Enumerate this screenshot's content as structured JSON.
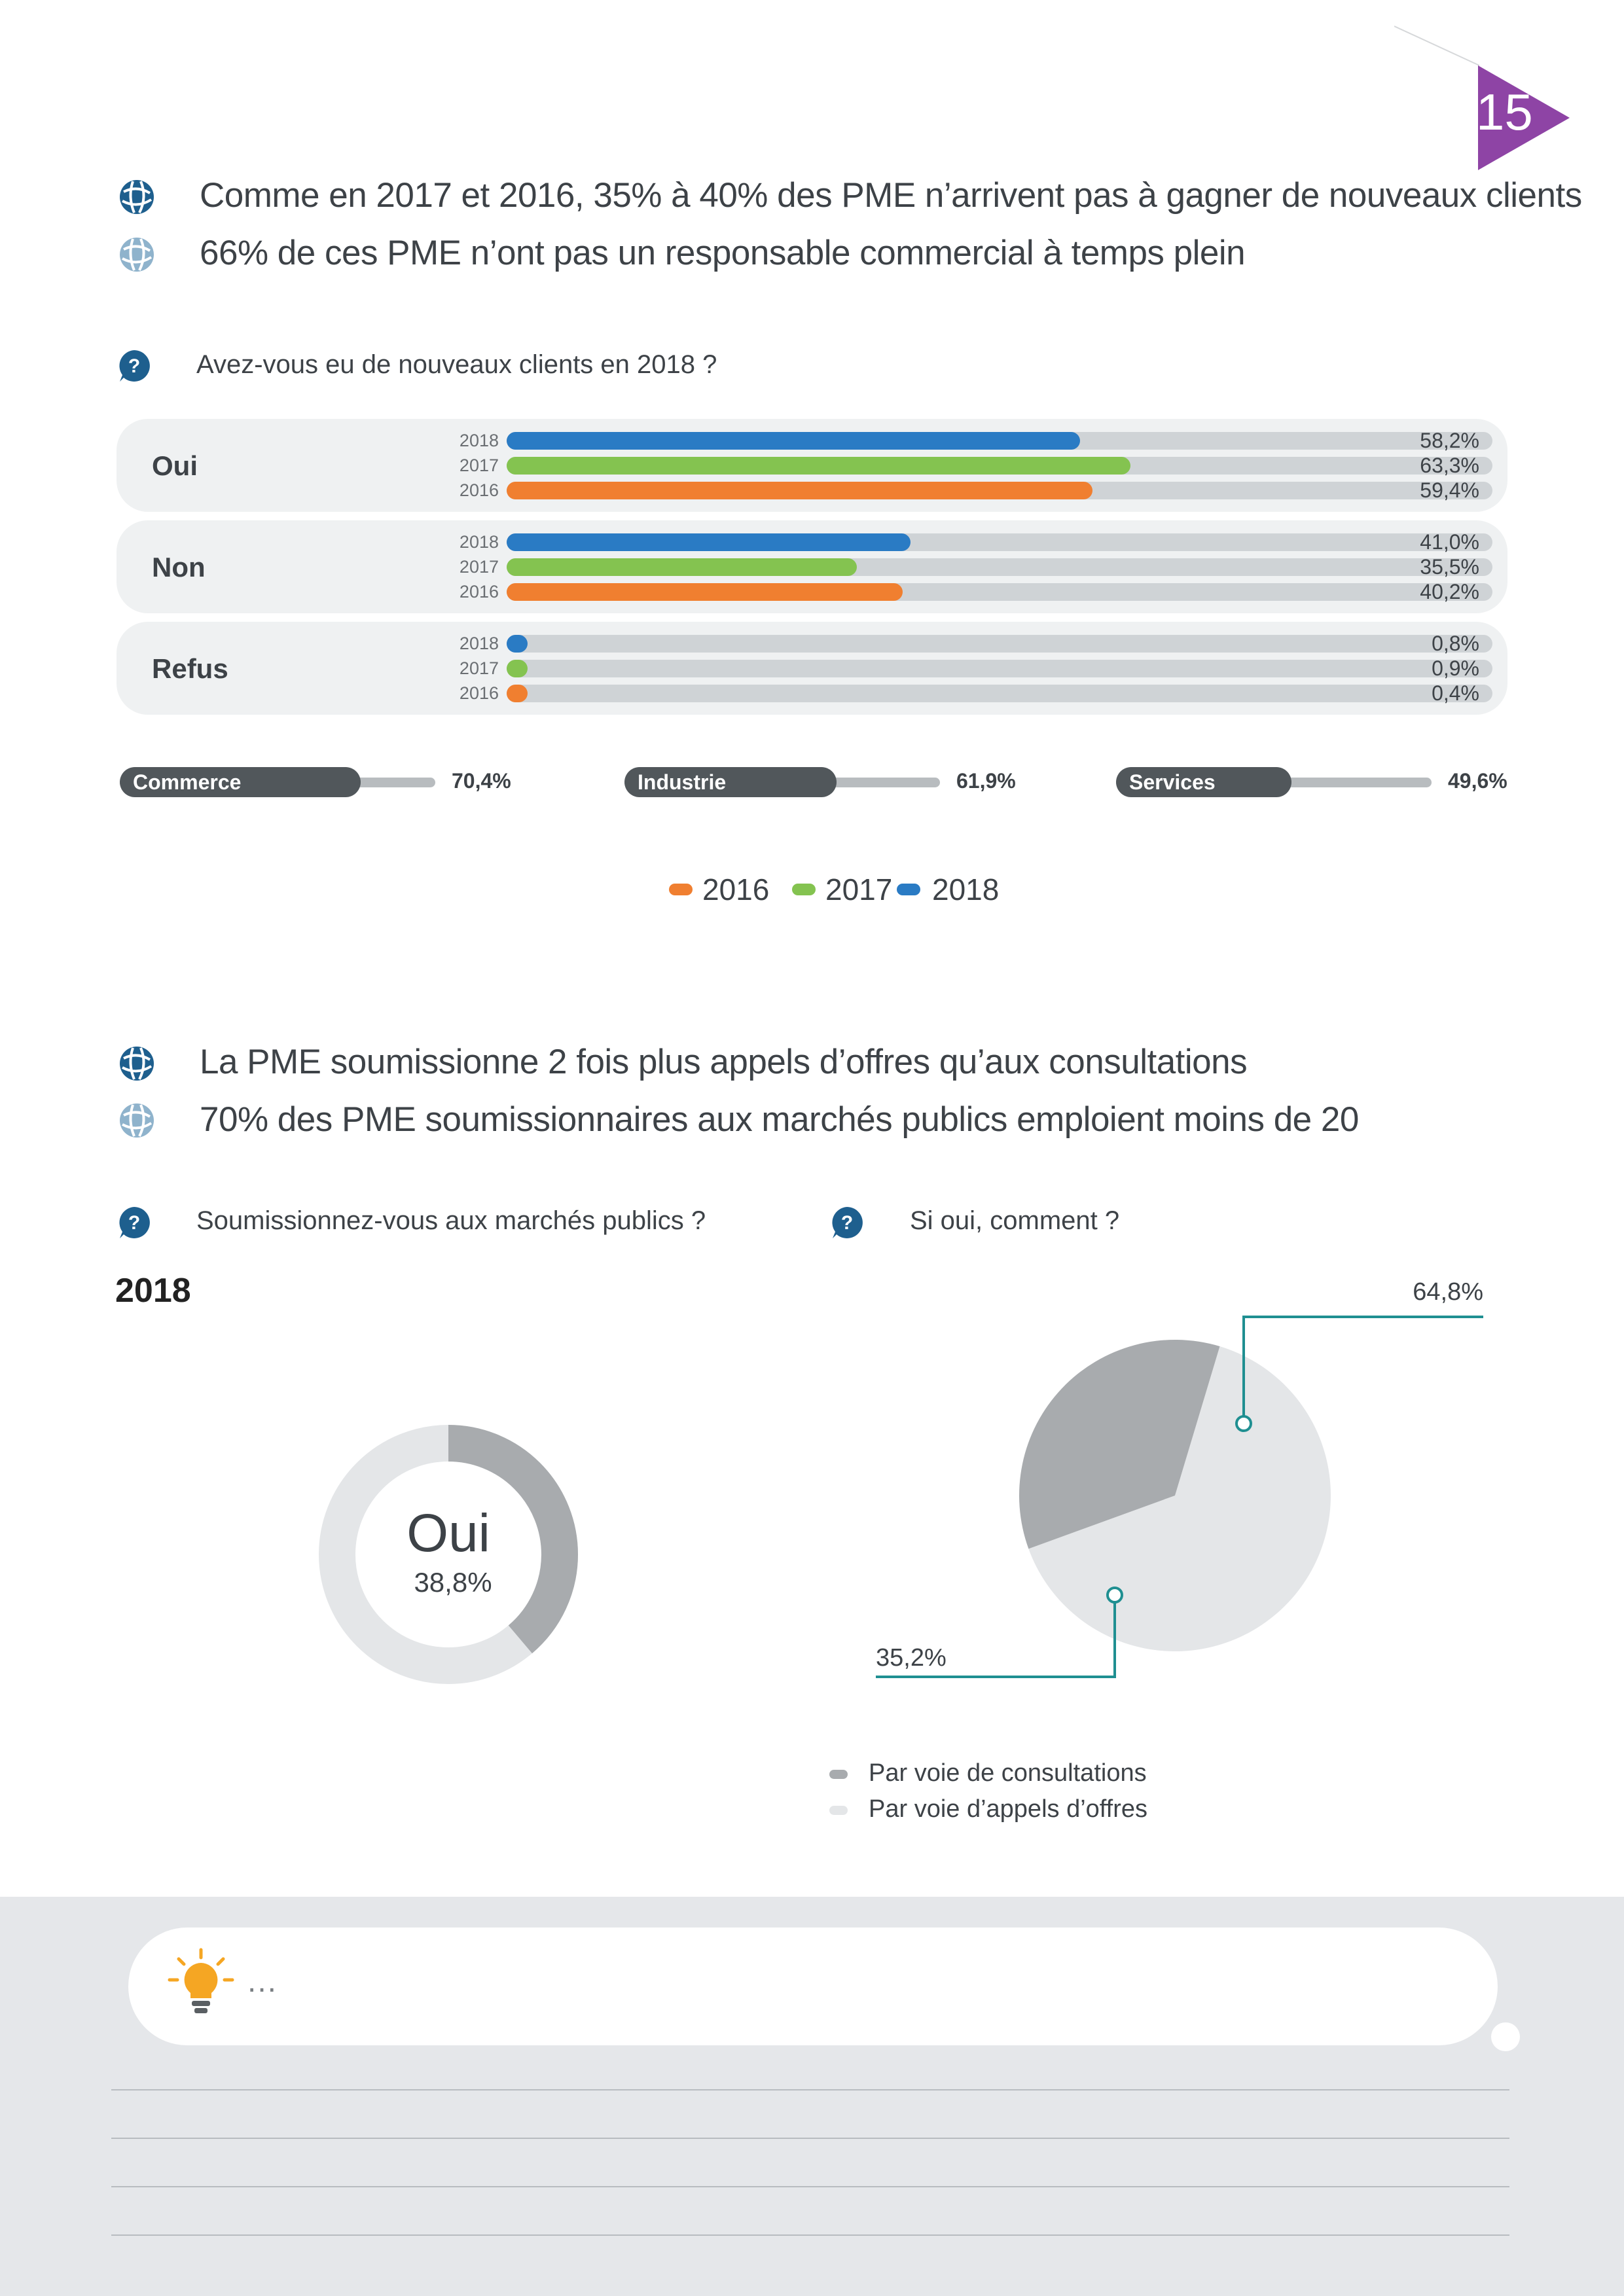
{
  "page": {
    "number": "15",
    "accent_color": "#8e44a5"
  },
  "section1": {
    "headline1": "Comme en 2017 et 2016, 35% à 40% des PME n’arrivent pas à gagner de nouveaux clients",
    "headline2": "66% de ces PME n’ont pas un responsable commercial à temps plein",
    "question": "Avez-vous eu de nouveaux clients en 2018 ?"
  },
  "colors": {
    "y2016": "#f07f30",
    "y2017": "#84c350",
    "y2018": "#2a7bc4",
    "track": "#cfd3d6",
    "pie_dark": "#a8abae",
    "pie_light": "#e4e6e8",
    "callout": "#1f8f91"
  },
  "chart_data": [
    {
      "type": "bar",
      "orientation": "horizontal",
      "title": "Avez-vous eu de nouveaux clients en 2018 ?",
      "categories": [
        "Oui",
        "Non",
        "Refus"
      ],
      "series": [
        {
          "name": "2018",
          "values": [
            58.2,
            41.0,
            0.8
          ],
          "labels": [
            "58,2%",
            "41,0%",
            "0,8%"
          ]
        },
        {
          "name": "2017",
          "values": [
            63.3,
            35.5,
            0.9
          ],
          "labels": [
            "63,3%",
            "35,5%",
            "0,9%"
          ]
        },
        {
          "name": "2016",
          "values": [
            59.4,
            40.2,
            0.4
          ],
          "labels": [
            "59,4%",
            "40,2%",
            "0,4%"
          ]
        }
      ],
      "xlim": [
        0,
        100
      ],
      "legend": {
        "position": "bottom-center",
        "entries": [
          "2016",
          "2017",
          "2018"
        ]
      }
    },
    {
      "type": "bar",
      "orientation": "horizontal",
      "categories": [
        "Commerce",
        "Industrie",
        "Services"
      ],
      "values": [
        70.4,
        61.9,
        49.6
      ],
      "labels": [
        "70,4%",
        "61,9%",
        "49,6%"
      ],
      "xlim": [
        0,
        100
      ]
    },
    {
      "type": "pie",
      "style": "donut",
      "title": "Soumissionnez-vous aux marchés publics ?",
      "subtitle": "2018",
      "center_label": "Oui",
      "slices": [
        {
          "label": "Oui",
          "value": 38.8,
          "display": "38,8%"
        },
        {
          "label": "",
          "value": 61.2
        }
      ]
    },
    {
      "type": "pie",
      "title": "Si oui, comment ?",
      "slices": [
        {
          "label": "Par voie de consultations",
          "value": 35.2,
          "display": "35,2%"
        },
        {
          "label": "Par voie d’appels d’offres",
          "value": 64.8,
          "display": "64,8%"
        }
      ],
      "legend": {
        "position": "bottom-left"
      }
    }
  ],
  "section2": {
    "headline1": "La PME soumissionne 2 fois plus appels d’offres qu’aux consultations",
    "headline2": "70% des PME soumissionnaires aux marchés publics emploient moins de 20",
    "question_left": "Soumissionnez-vous aux marchés publics ?",
    "question_right": "Si oui, comment ?",
    "year": "2018"
  },
  "footer": {
    "tip_text": "...",
    "tip_icon": "lightbulb-icon"
  }
}
